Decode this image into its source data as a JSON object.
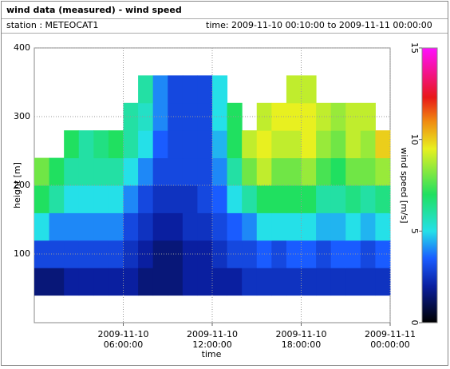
{
  "chart_data": {
    "type": "heatmap",
    "title": "wind data (measured) - wind speed",
    "station": "station : METEOCAT1",
    "time_range": "time: 2009-11-10 00:10:00 to 2009-11-11 00:00:00",
    "xlabel": "time",
    "ylabel": "height [m]",
    "colorbar_label": "wind speed [m/s]",
    "xlim": [
      0,
      24
    ],
    "ylim": [
      0,
      400
    ],
    "xticks": [
      {
        "value": 6,
        "label": "2009-11-10 06:00:00"
      },
      {
        "value": 12,
        "label": "2009-11-10 12:00:00"
      },
      {
        "value": 18,
        "label": "2009-11-10 18:00:00"
      },
      {
        "value": 24,
        "label": "2009-11-11 00:00:00"
      }
    ],
    "yticks": [
      100,
      200,
      300,
      400
    ],
    "grid": true,
    "x_bins": [
      0,
      1,
      2,
      3,
      4,
      5,
      6,
      7,
      8,
      9,
      10,
      11,
      12,
      13,
      14,
      15,
      16,
      17,
      18,
      19,
      20,
      21,
      22,
      23,
      24
    ],
    "y_bins": [
      40,
      80,
      120,
      160,
      200,
      240,
      280,
      320,
      360
    ],
    "z": [
      [
        1.5,
        1.5,
        2,
        2,
        2,
        2,
        2,
        1.5,
        1.5,
        1.5,
        2,
        2,
        2,
        2,
        2.5,
        2.5,
        2.5,
        2.5,
        2.5,
        2.5,
        2.5,
        2.5,
        2.5,
        2.5
      ],
      [
        3,
        3,
        3,
        3,
        3,
        3,
        2.5,
        2,
        1.5,
        1.5,
        2,
        2,
        2.5,
        3,
        3,
        3.5,
        3,
        3.5,
        3.5,
        3,
        3.5,
        3.5,
        3,
        3.5
      ],
      [
        5,
        4,
        4,
        4,
        4,
        4,
        3,
        2.5,
        2,
        2,
        2.5,
        2.5,
        3,
        3.5,
        4,
        5,
        5,
        5,
        5,
        4.5,
        4.5,
        5,
        4.5,
        5
      ],
      [
        7,
        6,
        5,
        5,
        5,
        5,
        4,
        3,
        2.5,
        2.5,
        2.5,
        3,
        3.5,
        5,
        6,
        7,
        7,
        7,
        7,
        6,
        6,
        6.5,
        6,
        6.5
      ],
      [
        8,
        7,
        6,
        6,
        6,
        6,
        5,
        4,
        3,
        3,
        3,
        3,
        4,
        6,
        8,
        9,
        8,
        8,
        8.5,
        7.5,
        7,
        8,
        8,
        8.5
      ],
      [
        null,
        null,
        7,
        6,
        6.5,
        7,
        6,
        5,
        3.5,
        3,
        3,
        3,
        4.5,
        7,
        9,
        9.5,
        9,
        9,
        9.5,
        8.5,
        8,
        9,
        8.5,
        10
      ],
      [
        null,
        null,
        null,
        null,
        null,
        null,
        6,
        5.5,
        4,
        3,
        3,
        3,
        5,
        7,
        null,
        9,
        9.5,
        9.5,
        9.5,
        9,
        8.5,
        9,
        9,
        null
      ],
      [
        null,
        null,
        null,
        null,
        null,
        null,
        null,
        6,
        4,
        3,
        3,
        3,
        5,
        null,
        null,
        null,
        null,
        9,
        9,
        null,
        null,
        null,
        null,
        null
      ]
    ],
    "zlim": [
      0,
      15
    ],
    "zticks": [
      0,
      5,
      10,
      15
    ],
    "colorscale": [
      [
        0,
        "#000000"
      ],
      [
        2,
        "#0a1fa0"
      ],
      [
        3.5,
        "#1a5cff"
      ],
      [
        5,
        "#25e0e8"
      ],
      [
        7,
        "#20e060"
      ],
      [
        9.5,
        "#e8f020"
      ],
      [
        11,
        "#f08a10"
      ],
      [
        12.3,
        "#e81818"
      ],
      [
        15,
        "#ff10ff"
      ]
    ]
  }
}
